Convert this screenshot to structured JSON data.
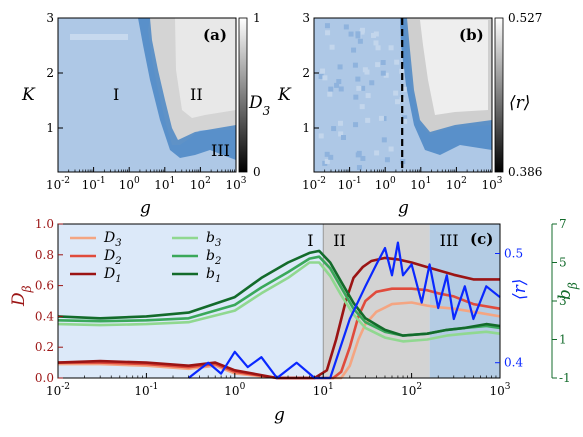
{
  "chart_data": [
    {
      "panel": "(a)",
      "type": "heatmap",
      "xlabel": "g",
      "ylabel": "K",
      "xscale": "log",
      "xlim": [
        0.01,
        1000
      ],
      "ylim": [
        0.2,
        3
      ],
      "xticks": [
        "10^-2",
        "10^-1",
        "10^0",
        "10^1",
        "10^2",
        "10^3"
      ],
      "yticks": [
        "1",
        "2",
        "3"
      ],
      "colorbar": {
        "label": "D_3",
        "min": 0,
        "max": 1,
        "ticks": [
          "0",
          "1"
        ]
      },
      "regions": [
        {
          "label": "I",
          "g": 0.3,
          "K": 1.6
        },
        {
          "label": "II",
          "g": 100,
          "K": 1.6
        },
        {
          "label": "III",
          "g": 300,
          "K": 0.45
        }
      ],
      "boundary": {
        "upper_g": [
          8,
          12,
          20,
          30,
          50,
          80,
          150,
          1000
        ],
        "upper_K": [
          3,
          2.5,
          1.8,
          1.2,
          0.8,
          0.8,
          0.9,
          0.9
        ]
      }
    },
    {
      "panel": "(b)",
      "type": "heatmap",
      "xlabel": "g",
      "ylabel": "K",
      "xscale": "log",
      "xlim": [
        0.01,
        1000
      ],
      "ylim": [
        0.2,
        3
      ],
      "xticks": [
        "10^-2",
        "10^-1",
        "10^0",
        "10^1",
        "10^2",
        "10^3"
      ],
      "yticks": [
        "1",
        "2",
        "3"
      ],
      "colorbar": {
        "label": "⟨r⟩",
        "min": 0.386,
        "max": 0.527,
        "ticks": [
          "0.386",
          "0.527"
        ]
      },
      "dashed_line_g": 3
    },
    {
      "panel": "(c)",
      "type": "line",
      "xlabel": "g",
      "xscale": "log",
      "xlim": [
        0.01,
        1000
      ],
      "xticks": [
        "10^-2",
        "10^-1",
        "10^0",
        "10^1",
        "10^2",
        "10^3"
      ],
      "ylabel_left": "D_β",
      "ylim_left": [
        0,
        1
      ],
      "yticks_left": [
        "0.0",
        "0.2",
        "0.4",
        "0.6",
        "0.8",
        "1.0"
      ],
      "ylabel_right_inner": "⟨r⟩",
      "ylim_right_inner": [
        0.386,
        0.527
      ],
      "yticks_right_inner": [
        "0.4",
        "0.5"
      ],
      "ylabel_right_outer": "b_β",
      "ylim_right_outer": [
        -1,
        7
      ],
      "yticks_right_outer": [
        "-1",
        "1",
        "3",
        "5",
        "7"
      ],
      "regions": [
        {
          "label": "I",
          "g_from": 0.01,
          "g_to": 10,
          "color": "#dce9f9"
        },
        {
          "label": "II",
          "g_from": 10,
          "g_to": 160,
          "color": "#d3d3d3"
        },
        {
          "label": "III",
          "g_from": 160,
          "g_to": 1000,
          "color": "#b4cce4"
        }
      ],
      "legend": [
        {
          "label": "D_3",
          "color": "#f4a582"
        },
        {
          "label": "b_3",
          "color": "#90d890"
        },
        {
          "label": "D_2",
          "color": "#e04b3c"
        },
        {
          "label": "b_2",
          "color": "#3aa85a"
        },
        {
          "label": "D_1",
          "color": "#9b1414"
        },
        {
          "label": "b_1",
          "color": "#136b2b"
        }
      ],
      "series": [
        {
          "name": "D_3",
          "axis": "left",
          "color": "#f4a582",
          "g": [
            0.01,
            0.03,
            0.1,
            0.3,
            0.6,
            1,
            3,
            8,
            13,
            16,
            20,
            25,
            30,
            40,
            60,
            100,
            150,
            200,
            300,
            500,
            1000
          ],
          "values": [
            0.09,
            0.09,
            0.08,
            0.06,
            0.08,
            0.03,
            0.0,
            0.0,
            0.0,
            0.0,
            0.08,
            0.25,
            0.35,
            0.43,
            0.48,
            0.49,
            0.47,
            0.46,
            0.45,
            0.43,
            0.4
          ]
        },
        {
          "name": "D_2",
          "axis": "left",
          "color": "#e04b3c",
          "g": [
            0.01,
            0.03,
            0.1,
            0.3,
            0.6,
            1,
            3,
            8,
            13,
            16,
            20,
            25,
            30,
            40,
            60,
            100,
            150,
            200,
            300,
            500,
            1000
          ],
          "values": [
            0.1,
            0.1,
            0.09,
            0.07,
            0.09,
            0.04,
            0.0,
            0.0,
            0.0,
            0.04,
            0.2,
            0.4,
            0.5,
            0.56,
            0.58,
            0.58,
            0.57,
            0.55,
            0.53,
            0.48,
            0.45
          ]
        },
        {
          "name": "D_1",
          "axis": "left",
          "color": "#9b1414",
          "g": [
            0.01,
            0.03,
            0.1,
            0.3,
            0.6,
            1,
            3,
            8,
            11,
            14,
            18,
            22,
            28,
            35,
            50,
            70,
            100,
            150,
            200,
            300,
            500,
            1000
          ],
          "values": [
            0.1,
            0.11,
            0.1,
            0.08,
            0.1,
            0.05,
            0.0,
            0.0,
            0.05,
            0.25,
            0.5,
            0.65,
            0.72,
            0.76,
            0.78,
            0.77,
            0.75,
            0.72,
            0.7,
            0.67,
            0.64,
            0.64
          ]
        },
        {
          "name": "b_3",
          "axis": "right_outer",
          "color": "#90d890",
          "g": [
            0.01,
            0.03,
            0.1,
            0.3,
            1,
            2,
            4,
            7,
            9,
            12,
            16,
            22,
            30,
            50,
            80,
            150,
            250,
            400,
            700,
            1000
          ],
          "values": [
            1.8,
            1.75,
            1.8,
            1.9,
            2.5,
            3.4,
            4.2,
            5.0,
            5.0,
            4.3,
            3.3,
            2.3,
            1.6,
            1.1,
            0.9,
            1.0,
            1.2,
            1.3,
            1.4,
            1.3
          ]
        },
        {
          "name": "b_2",
          "axis": "right_outer",
          "color": "#3aa85a",
          "g": [
            0.01,
            0.03,
            0.1,
            0.3,
            1,
            2,
            4,
            7,
            9,
            12,
            16,
            22,
            30,
            50,
            80,
            150,
            250,
            400,
            700,
            1000
          ],
          "values": [
            2.0,
            1.95,
            2.0,
            2.1,
            2.8,
            3.7,
            4.5,
            5.2,
            5.3,
            4.7,
            3.7,
            2.6,
            1.9,
            1.4,
            1.2,
            1.3,
            1.5,
            1.6,
            1.7,
            1.6
          ]
        },
        {
          "name": "b_1",
          "axis": "right_outer",
          "color": "#136b2b",
          "g": [
            0.01,
            0.03,
            0.1,
            0.3,
            1,
            2,
            4,
            7,
            9,
            12,
            16,
            22,
            30,
            50,
            80,
            150,
            250,
            400,
            700,
            1000
          ],
          "values": [
            2.2,
            2.1,
            2.2,
            2.4,
            3.2,
            4.2,
            5.0,
            5.5,
            5.6,
            5.0,
            4.0,
            2.9,
            2.1,
            1.5,
            1.2,
            1.3,
            1.5,
            1.6,
            1.8,
            1.7
          ]
        },
        {
          "name": "⟨r⟩",
          "axis": "right_inner",
          "color": "#0a28ff",
          "g": [
            0.3,
            0.5,
            0.7,
            1.0,
            1.4,
            2,
            3,
            5,
            8,
            12,
            20,
            30,
            40,
            50,
            60,
            70,
            80,
            100,
            130,
            160,
            200,
            250,
            300,
            400,
            500,
            700,
            1000
          ],
          "values": [
            0.386,
            0.4,
            0.39,
            0.41,
            0.396,
            0.405,
            0.386,
            0.4,
            0.38,
            0.386,
            0.44,
            0.47,
            0.49,
            0.505,
            0.48,
            0.51,
            0.48,
            0.49,
            0.455,
            0.49,
            0.45,
            0.48,
            0.44,
            0.47,
            0.44,
            0.47,
            0.46
          ]
        }
      ]
    }
  ]
}
